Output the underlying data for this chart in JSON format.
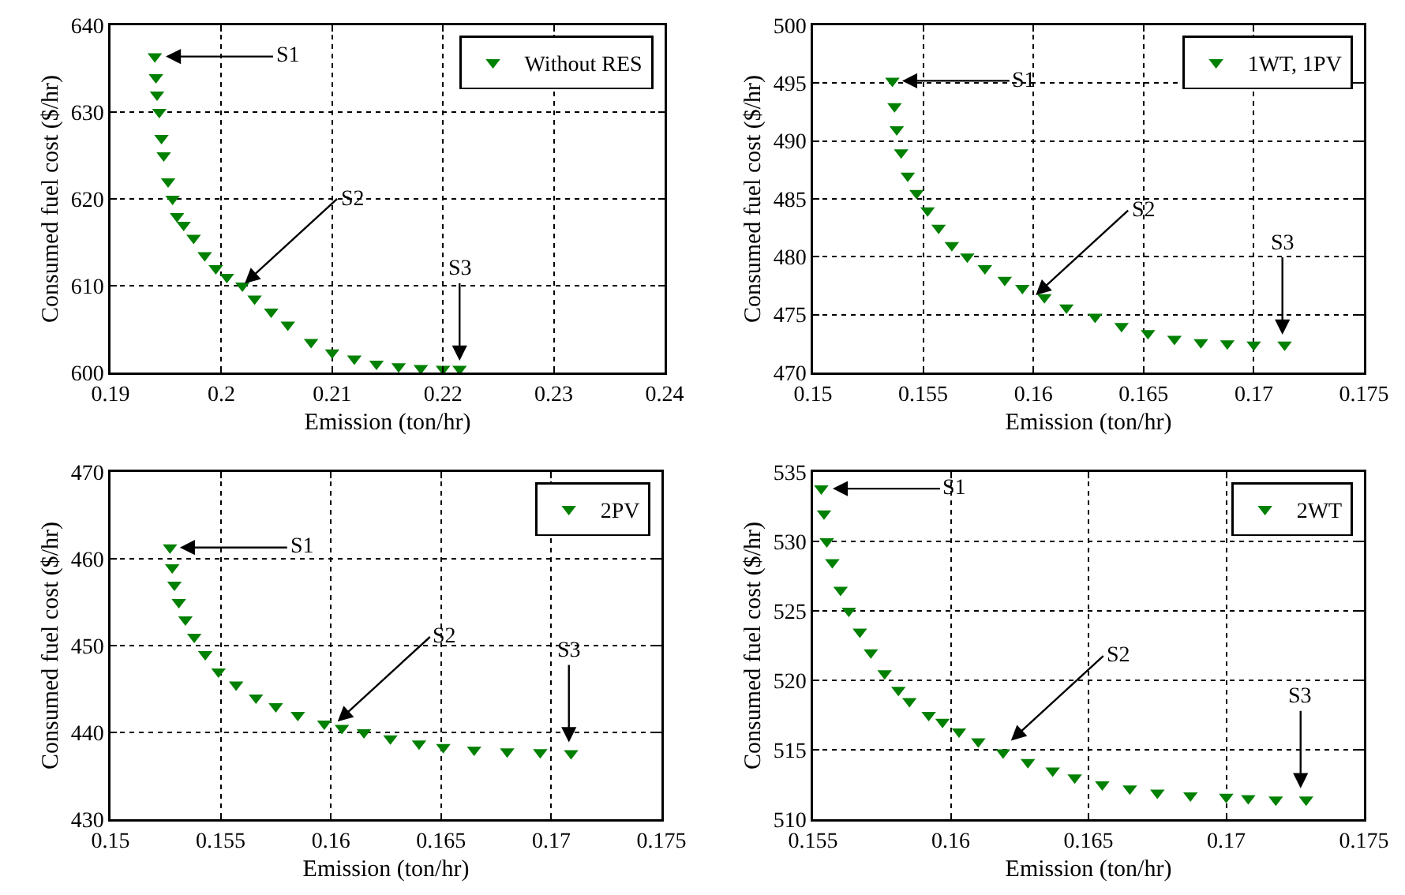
{
  "chart_data": [
    {
      "type": "scatter",
      "xlabel": "Emission (ton/hr)",
      "ylabel": "Consumed fuel cost ($/hr)",
      "marker": "triangle",
      "grid": true,
      "legend": "top right",
      "xlim": [
        0.19,
        0.24
      ],
      "xticks": [
        0.19,
        0.2,
        0.21,
        0.22,
        0.23,
        0.24
      ],
      "ylim": [
        600,
        640
      ],
      "yticks": [
        600,
        610,
        620,
        630,
        640
      ],
      "series": [
        {
          "name": "Without RES",
          "color": "#008000",
          "x": [
            0.194,
            0.1941,
            0.1942,
            0.1944,
            0.1946,
            0.1948,
            0.1952,
            0.1956,
            0.196,
            0.1966,
            0.1975,
            0.1985,
            0.1995,
            0.2005,
            0.2019,
            0.203,
            0.2045,
            0.206,
            0.2081,
            0.21,
            0.212,
            0.214,
            0.216,
            0.218,
            0.22,
            0.2215
          ],
          "values": [
            636.4,
            634,
            632,
            630,
            627,
            625,
            622,
            620,
            618,
            617,
            615.5,
            613.5,
            612,
            611,
            610,
            608.5,
            607,
            605.5,
            603.5,
            602.3,
            601.6,
            601,
            600.7,
            600.5,
            600.4,
            600.4
          ]
        }
      ],
      "annotations": [
        {
          "text": "S1",
          "x": 0.1947,
          "y": 636.4
        },
        {
          "text": "S2",
          "x": 0.2019,
          "y": 610
        },
        {
          "text": "S3",
          "x": 0.2215,
          "y": 601
        }
      ]
    },
    {
      "type": "scatter",
      "xlabel": "Emission (ton/hr)",
      "ylabel": "Consumed fuel cost ($/hr)",
      "marker": "triangle",
      "grid": true,
      "legend": "top right",
      "xlim": [
        0.15,
        0.175
      ],
      "xticks": [
        0.15,
        0.155,
        0.16,
        0.165,
        0.17,
        0.175
      ],
      "ylim": [
        470,
        500
      ],
      "yticks": [
        470,
        475,
        480,
        485,
        490,
        495,
        500
      ],
      "series": [
        {
          "name": "1WT, 1PV",
          "color": "#008000",
          "x": [
            0.1536,
            0.1537,
            0.1538,
            0.154,
            0.1543,
            0.1547,
            0.1552,
            0.1557,
            0.1563,
            0.157,
            0.1578,
            0.1587,
            0.1595,
            0.1605,
            0.1615,
            0.1628,
            0.164,
            0.1652,
            0.1664,
            0.1676,
            0.1688,
            0.17,
            0.1714
          ],
          "values": [
            495.2,
            493,
            491,
            489,
            487,
            485.5,
            484,
            482.5,
            481,
            480,
            479,
            478,
            477.3,
            476.5,
            475.6,
            474.8,
            474,
            473.4,
            472.9,
            472.6,
            472.5,
            472.4,
            472.4
          ]
        }
      ],
      "annotations": [
        {
          "text": "S1",
          "x": 0.1539,
          "y": 495.2
        },
        {
          "text": "S2",
          "x": 0.16,
          "y": 476.5
        },
        {
          "text": "S3",
          "x": 0.1713,
          "y": 473
        }
      ]
    },
    {
      "type": "scatter",
      "xlabel": "Emission (ton/hr)",
      "ylabel": "Consumed fuel cost ($/hr)",
      "marker": "triangle",
      "grid": true,
      "legend": "top right",
      "xlim": [
        0.15,
        0.175
      ],
      "xticks": [
        0.15,
        0.155,
        0.16,
        0.165,
        0.17,
        0.175
      ],
      "ylim": [
        430,
        470
      ],
      "yticks": [
        430,
        440,
        450,
        460,
        470
      ],
      "series": [
        {
          "name": "2PV",
          "color": "#008000",
          "x": [
            0.1527,
            0.1528,
            0.1529,
            0.1531,
            0.1534,
            0.1538,
            0.1543,
            0.1549,
            0.1557,
            0.1566,
            0.1575,
            0.1585,
            0.1597,
            0.1605,
            0.1615,
            0.1627,
            0.164,
            0.1651,
            0.1665,
            0.168,
            0.1695,
            0.1709
          ],
          "values": [
            461.3,
            459,
            457,
            455,
            453,
            451,
            449,
            447,
            445.5,
            444,
            443,
            442,
            441,
            440.5,
            440,
            439.3,
            438.7,
            438.3,
            438,
            437.8,
            437.7,
            437.6
          ]
        }
      ],
      "annotations": [
        {
          "text": "S1",
          "x": 0.153,
          "y": 461.3
        },
        {
          "text": "S2",
          "x": 0.1602,
          "y": 441
        },
        {
          "text": "S3",
          "x": 0.1708,
          "y": 438.5
        }
      ]
    },
    {
      "type": "scatter",
      "xlabel": "Emission (ton/hr)",
      "ylabel": "Consumed fuel cost ($/hr)",
      "marker": "triangle",
      "grid": true,
      "legend": "top right",
      "xlim": [
        0.155,
        0.175
      ],
      "xticks": [
        0.155,
        0.16,
        0.165,
        0.17,
        0.175
      ],
      "ylim": [
        510,
        535
      ],
      "yticks": [
        510,
        515,
        520,
        525,
        530,
        535
      ],
      "series": [
        {
          "name": "2WT",
          "color": "#008000",
          "x": [
            0.1553,
            0.1554,
            0.1555,
            0.1557,
            0.156,
            0.1563,
            0.1567,
            0.1571,
            0.1576,
            0.1581,
            0.1585,
            0.1592,
            0.1597,
            0.1603,
            0.161,
            0.1619,
            0.1628,
            0.1637,
            0.1645,
            0.1655,
            0.1665,
            0.1675,
            0.1687,
            0.17,
            0.1708,
            0.1718,
            0.1729
          ],
          "values": [
            533.8,
            532,
            530,
            528.5,
            526.5,
            525,
            523.5,
            522,
            520.5,
            519.3,
            518.5,
            517.5,
            517,
            516.3,
            515.6,
            514.8,
            514.1,
            513.5,
            513,
            512.5,
            512.2,
            511.9,
            511.7,
            511.6,
            511.5,
            511.4,
            511.4
          ]
        }
      ],
      "annotations": [
        {
          "text": "S1",
          "x": 0.1556,
          "y": 533.8
        },
        {
          "text": "S2",
          "x": 0.1621,
          "y": 515.5
        },
        {
          "text": "S3",
          "x": 0.1727,
          "y": 512
        }
      ]
    }
  ]
}
